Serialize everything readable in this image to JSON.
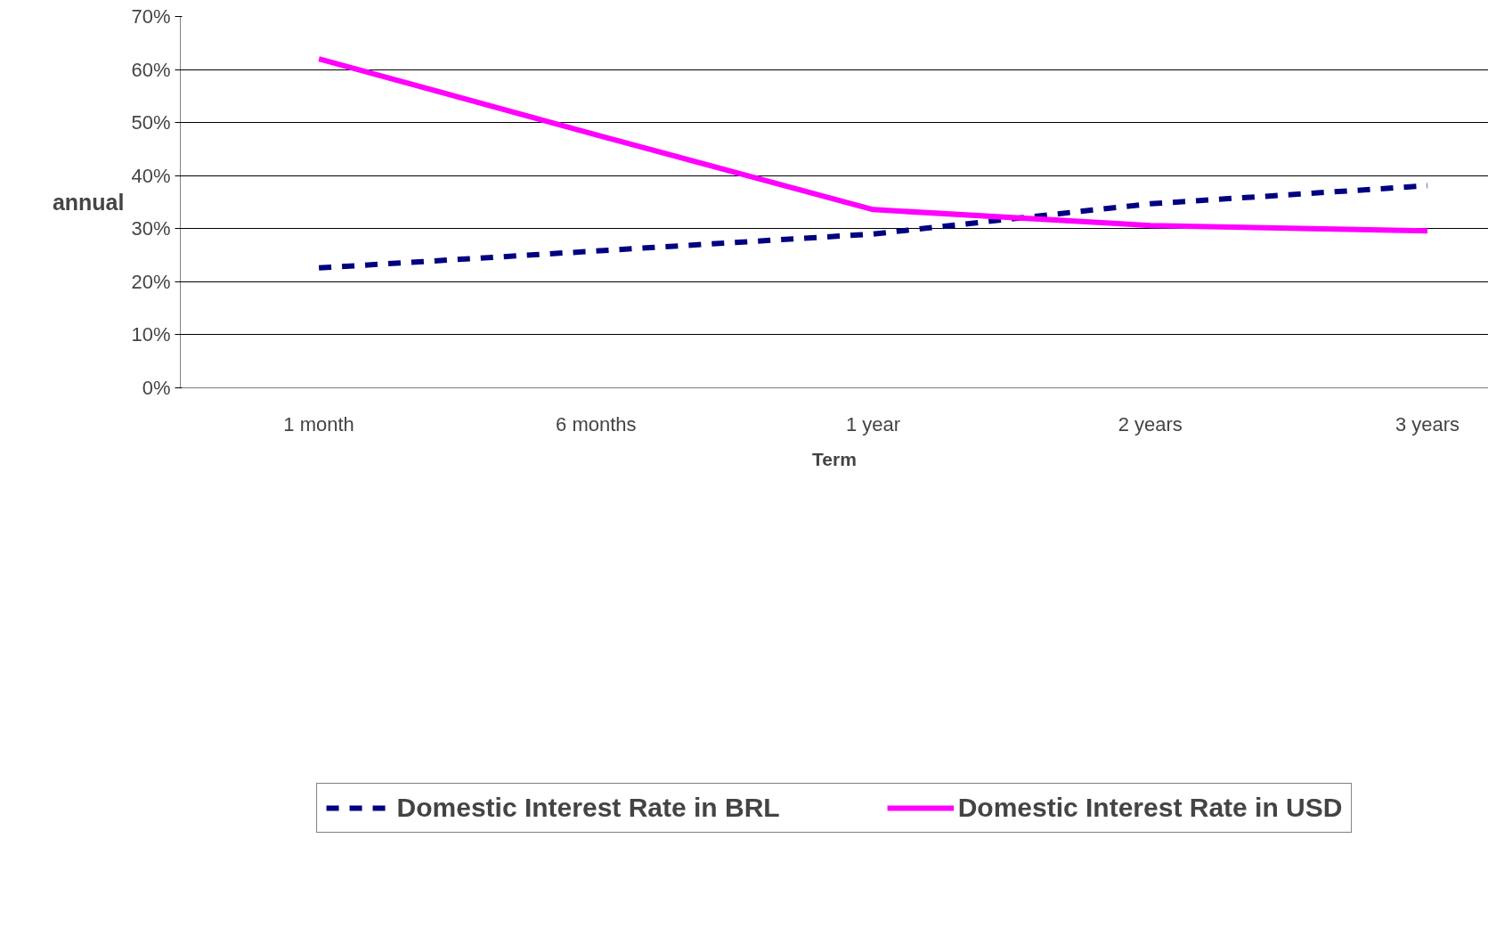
{
  "chart_data": {
    "type": "line",
    "xlabel": "Term",
    "ylabel": "annual",
    "categories": [
      "1 month",
      "6 months",
      "1 year",
      "2 years",
      "3 years"
    ],
    "series": [
      {
        "name": "Domestic Interest Rate in BRL",
        "color": "#000080",
        "line_style": "dashed",
        "values": [
          22.6,
          25.8,
          29.0,
          34.7,
          38.1
        ]
      },
      {
        "name": "Domestic Interest Rate in USD",
        "color": "#ff00ff",
        "line_style": "solid",
        "values": [
          62.0,
          47.7,
          33.6,
          30.6,
          29.6
        ]
      }
    ],
    "ylim": [
      0,
      70
    ],
    "yticks": [
      {
        "value": 0,
        "label": "0%"
      },
      {
        "value": 10,
        "label": "10%"
      },
      {
        "value": 20,
        "label": "20%"
      },
      {
        "value": 30,
        "label": "30%"
      },
      {
        "value": 40,
        "label": "40%"
      },
      {
        "value": 50,
        "label": "50%"
      },
      {
        "value": 60,
        "label": "60%"
      },
      {
        "value": 70,
        "label": "70%"
      }
    ],
    "grid": "y",
    "legend": "bottom",
    "marker": "none"
  }
}
